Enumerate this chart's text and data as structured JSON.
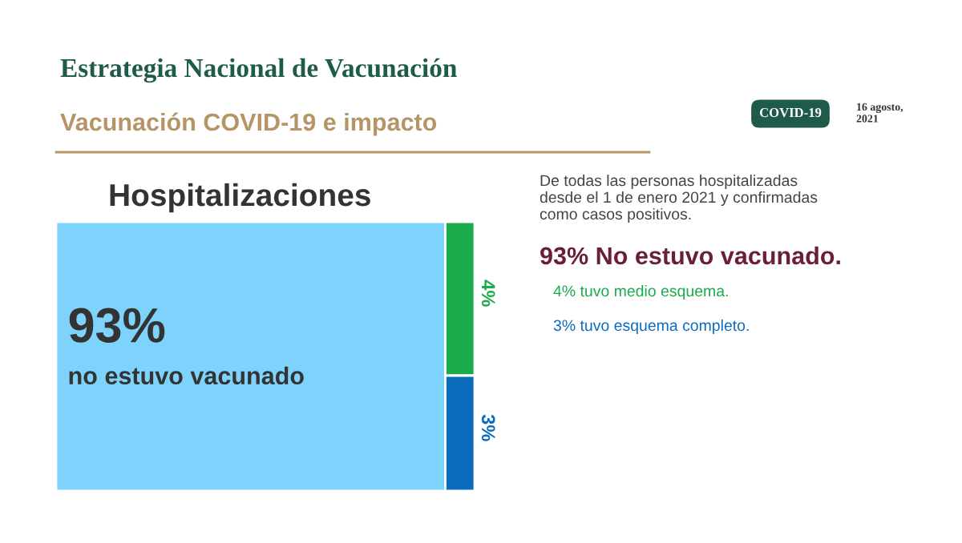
{
  "chart_data": {
    "type": "other",
    "title": "Estrategia Nacional de Vacunación",
    "subtitle": "Vacunación COVID-19 e impacto",
    "categories": [
      "no estuvo vacunado",
      null,
      null
    ],
    "values": [
      93,
      4,
      3
    ],
    "value_labels": [
      "93%",
      "4%",
      "3%"
    ],
    "colors": [
      "#7dd3fb",
      "#1aab4b",
      "#0b6bbf"
    ],
    "annotations": [
      "Hospitalizaciones",
      "COVID-19",
      "16 agosto,\n2021",
      "De todas las personas hospitalizadas\ndesde el 1 de enero 2021 y confirmadas\ncomo casos positivos.",
      "93% No estuvo vacunado.",
      "4% tuvo medio esquema.",
      "3% tuvo esquema completo."
    ]
  }
}
